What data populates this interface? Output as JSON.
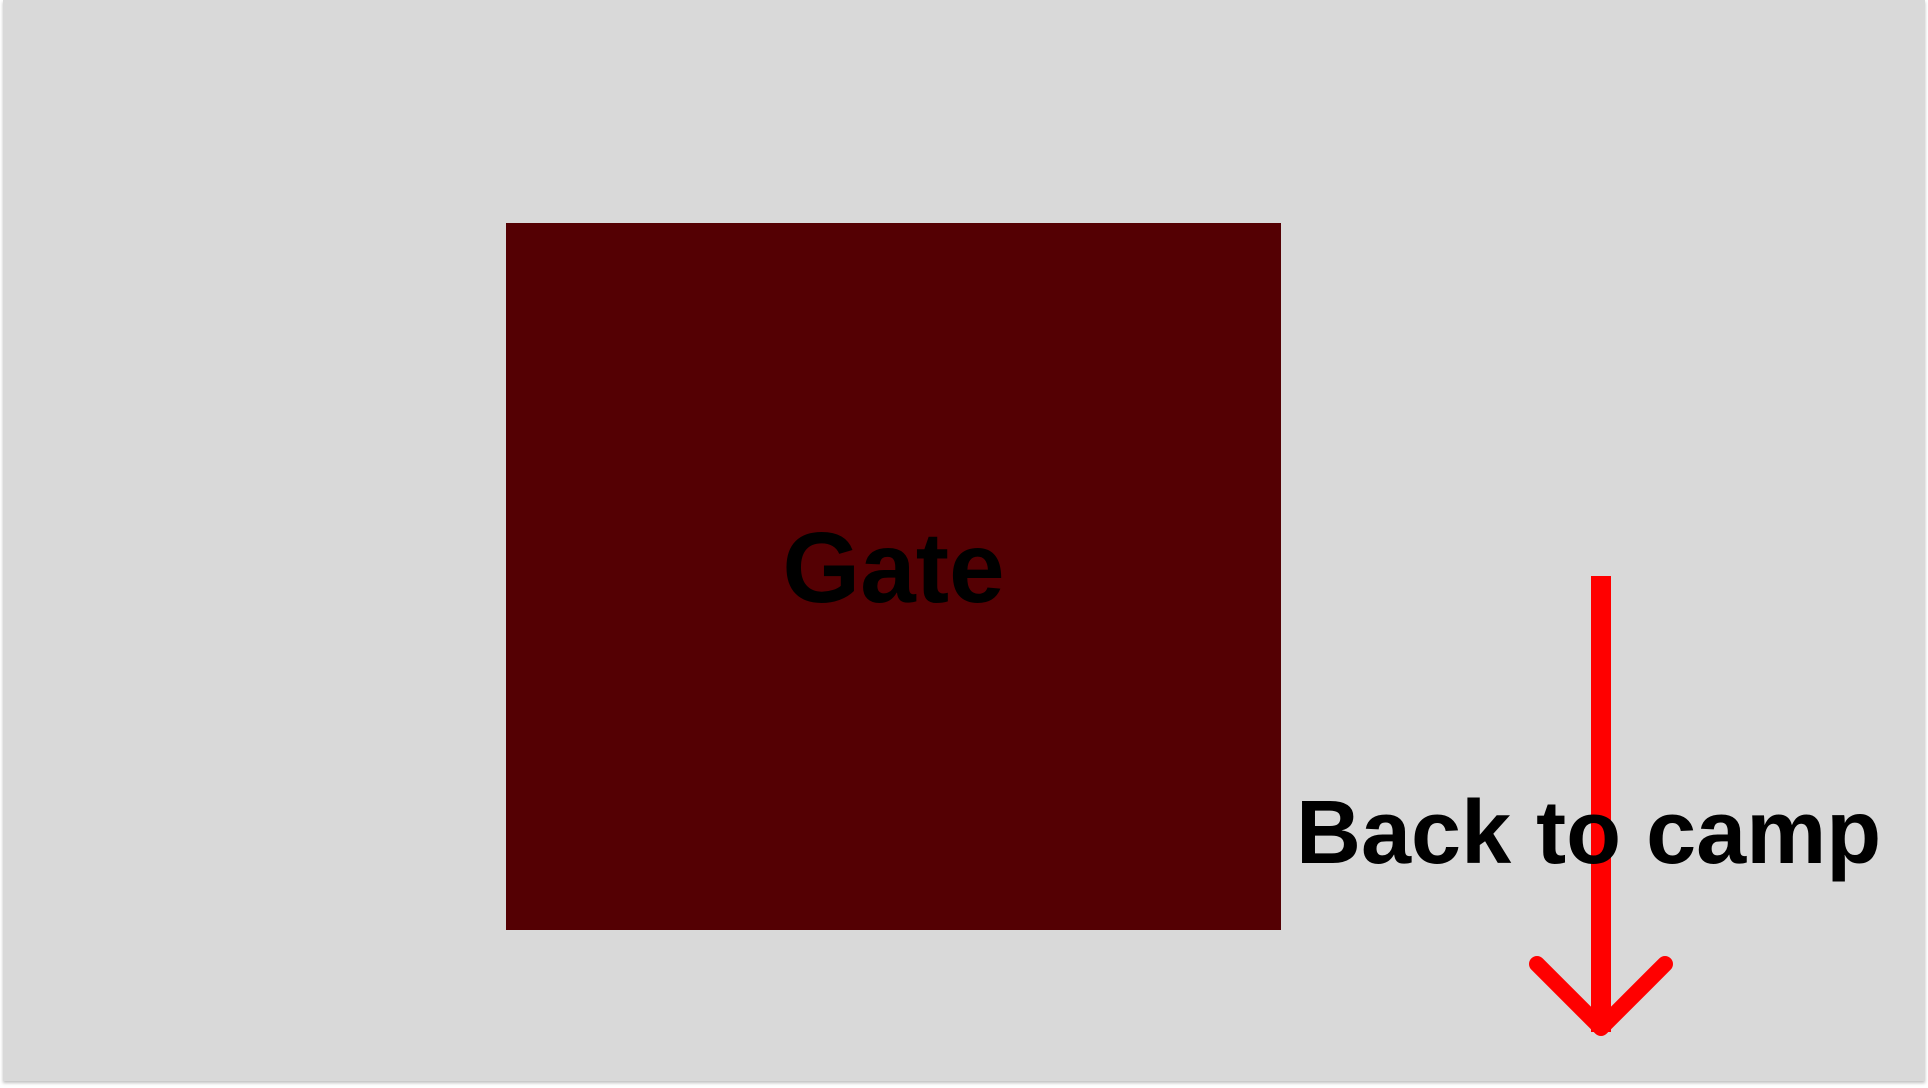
{
  "scene": {
    "background_color": "#d9d9d9"
  },
  "gate": {
    "label": "Gate",
    "color": "#540003"
  },
  "exit": {
    "label": "Back to camp",
    "arrow_color": "#ff0000",
    "arrow_icon": "arrow-down-icon"
  }
}
